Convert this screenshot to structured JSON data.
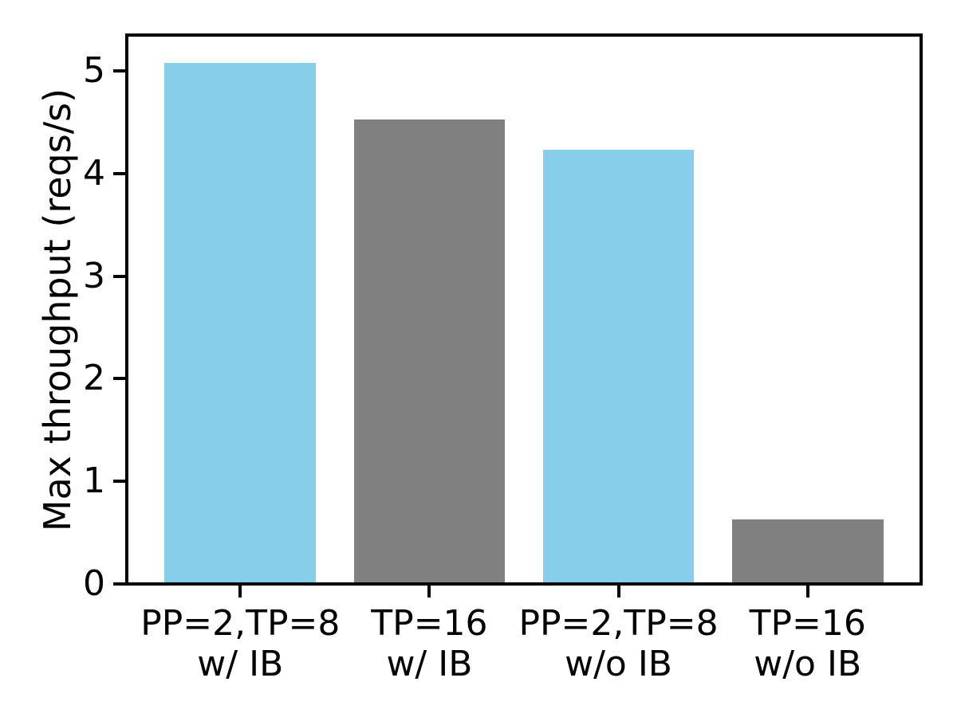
{
  "figure": {
    "background": "#ffffff",
    "text_color": "#000000",
    "axis_color": "#000000"
  },
  "chart_data": {
    "type": "bar",
    "title": "",
    "ylabel": "Max throughput (reqs/s)",
    "xlabel": "",
    "categories": [
      "PP=2,TP=8\nw/ IB",
      "TP=16\nw/ IB",
      "PP=2,TP=8\nw/o IB",
      "TP=16\nw/o IB"
    ],
    "values": [
      5.08,
      4.53,
      4.23,
      0.63
    ],
    "bar_colors": [
      "#87CEEB",
      "#808080",
      "#87CEEB",
      "#808080"
    ],
    "yticks": [
      0,
      1,
      2,
      3,
      4,
      5
    ],
    "ylim": [
      0,
      5.35
    ],
    "grid": false,
    "legend": "none",
    "bar_width_fraction": 0.8
  }
}
